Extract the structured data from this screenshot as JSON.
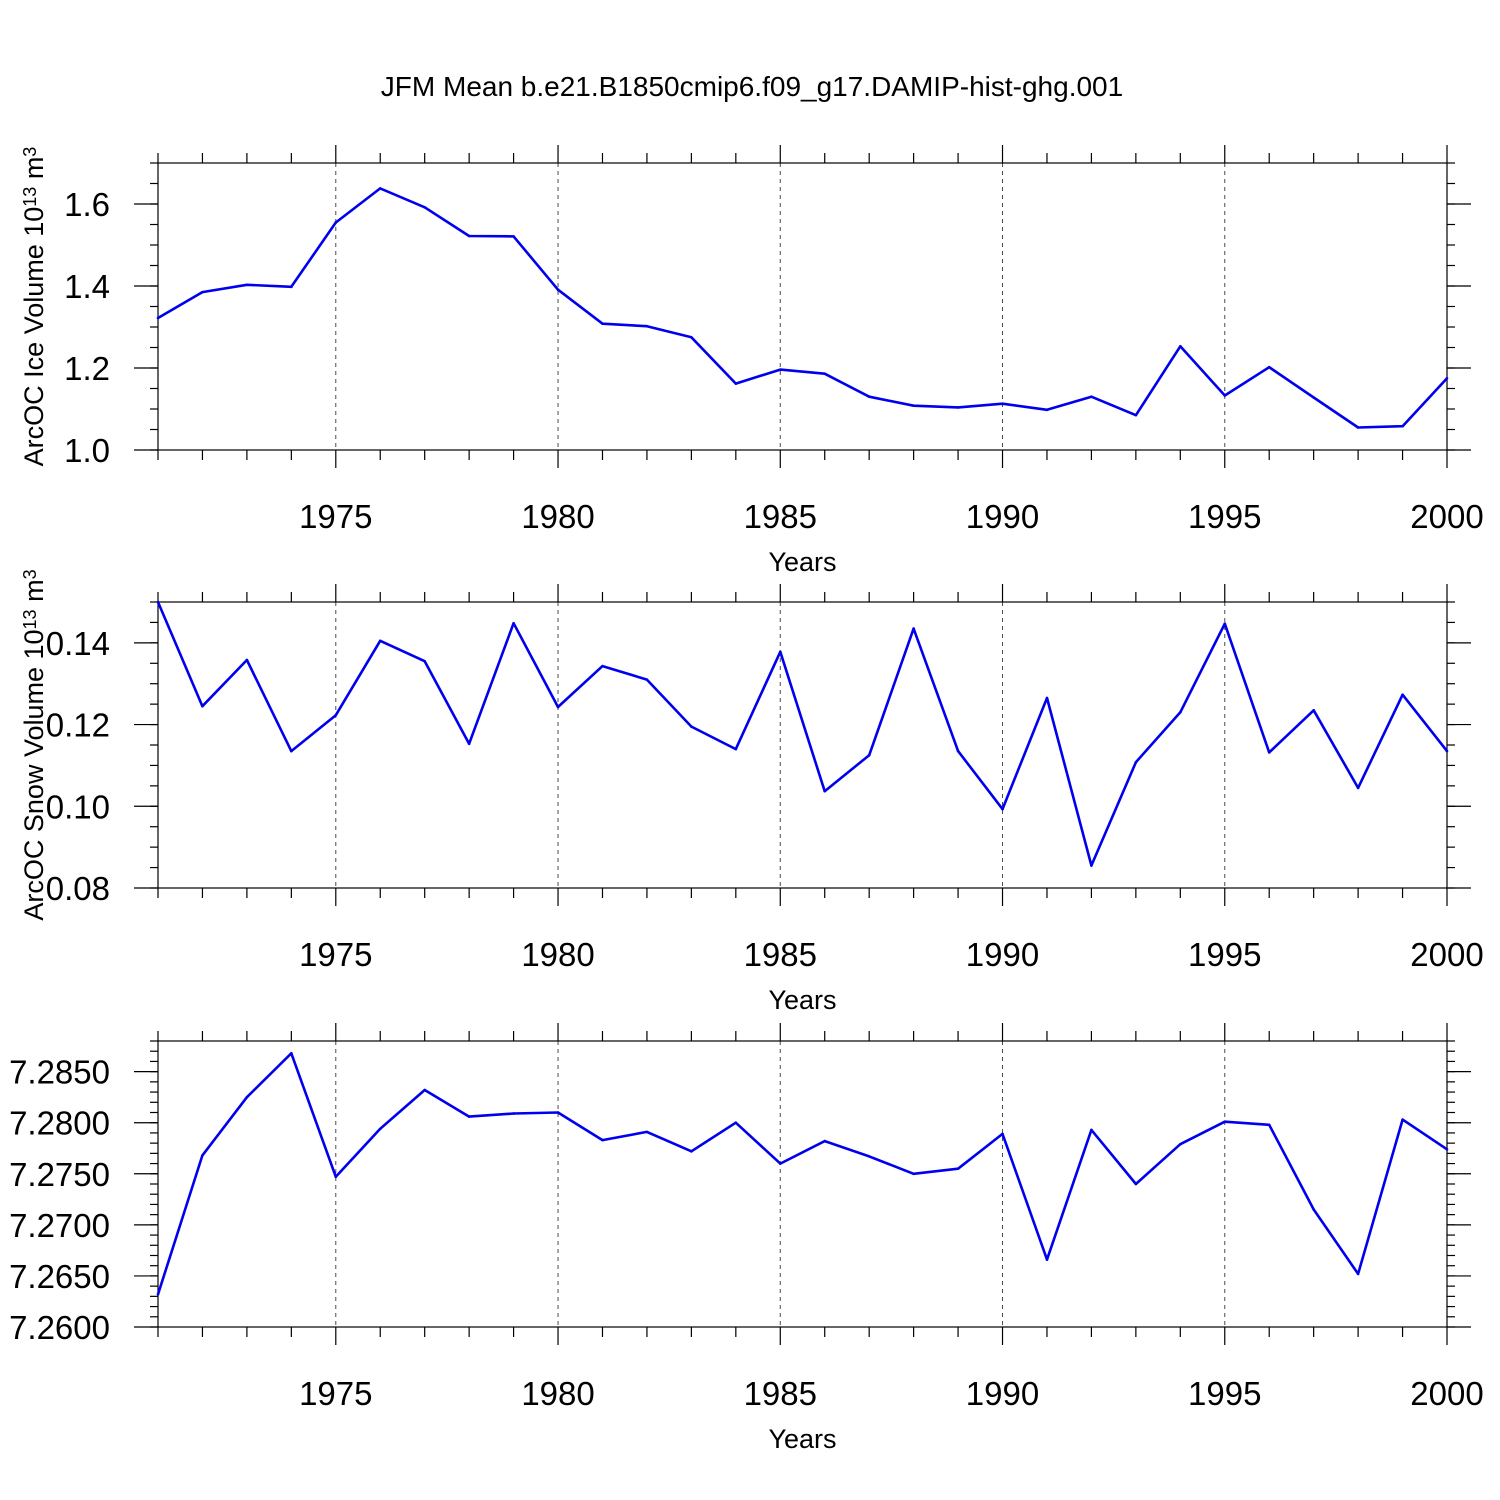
{
  "title": "JFM Mean b.e21.B1850cmip6.f09_g17.DAMIP-hist-ghg.001",
  "colors": {
    "line": "#0000ee",
    "axis": "#000000",
    "background": "#ffffff"
  },
  "chart_data": [
    {
      "type": "line",
      "xlabel": "Years",
      "ylabel": "ArcOC Ice Volume 10",
      "ylabel_exp": "13",
      "ylabel_unit": " m",
      "ylabel_unit_exp": "3",
      "xlim": [
        1971,
        2000
      ],
      "ylim": [
        1.0,
        1.7
      ],
      "xticks": [
        1975,
        1980,
        1985,
        1990,
        1995,
        2000
      ],
      "xtick_labels": [
        "1975",
        "1980",
        "1985",
        "1990",
        "1995",
        "2000"
      ],
      "yticks": [
        1.0,
        1.2,
        1.4,
        1.6
      ],
      "ytick_labels": [
        "1.0",
        "1.2",
        "1.4",
        "1.6"
      ],
      "yminor": 0.05,
      "grid": "x dashed",
      "x": [
        1971,
        1972,
        1973,
        1974,
        1975,
        1976,
        1977,
        1978,
        1979,
        1980,
        1981,
        1982,
        1983,
        1984,
        1985,
        1986,
        1987,
        1988,
        1989,
        1990,
        1991,
        1992,
        1993,
        1994,
        1995,
        1996,
        1997,
        1998,
        1999,
        2000
      ],
      "series": [
        {
          "values": [
            1.322,
            1.385,
            1.403,
            1.398,
            1.555,
            1.638,
            1.592,
            1.522,
            1.521,
            1.391,
            1.308,
            1.302,
            1.275,
            1.162,
            1.196,
            1.186,
            1.13,
            1.108,
            1.104,
            1.113,
            1.098,
            1.13,
            1.085,
            1.253,
            1.133,
            1.202,
            1.128,
            1.055,
            1.058,
            1.175
          ]
        }
      ]
    },
    {
      "type": "line",
      "xlabel": "Years",
      "ylabel": "ArcOC Snow Volume 10",
      "ylabel_exp": "13",
      "ylabel_unit": " m",
      "ylabel_unit_exp": "3",
      "xlim": [
        1971,
        2000
      ],
      "ylim": [
        0.08,
        0.15
      ],
      "xticks": [
        1975,
        1980,
        1985,
        1990,
        1995,
        2000
      ],
      "xtick_labels": [
        "1975",
        "1980",
        "1985",
        "1990",
        "1995",
        "2000"
      ],
      "yticks": [
        0.08,
        0.1,
        0.12,
        0.14
      ],
      "ytick_labels": [
        "0.08",
        "0.10",
        "0.12",
        "0.14"
      ],
      "yminor": 0.005,
      "grid": "x dashed",
      "x": [
        1971,
        1972,
        1973,
        1974,
        1975,
        1976,
        1977,
        1978,
        1979,
        1980,
        1981,
        1982,
        1983,
        1984,
        1985,
        1986,
        1987,
        1988,
        1989,
        1990,
        1991,
        1992,
        1993,
        1994,
        1995,
        1996,
        1997,
        1998,
        1999,
        2000
      ],
      "series": [
        {
          "values": [
            0.15,
            0.1245,
            0.1358,
            0.1135,
            0.1223,
            0.1405,
            0.1355,
            0.1153,
            0.1448,
            0.1243,
            0.1343,
            0.131,
            0.1195,
            0.114,
            0.1378,
            0.1037,
            0.1125,
            0.1435,
            0.1135,
            0.0993,
            0.1265,
            0.0855,
            0.1108,
            0.123,
            0.1447,
            0.1132,
            0.1235,
            0.1045,
            0.1273,
            0.1135
          ]
        }
      ]
    },
    {
      "type": "line",
      "xlabel": "Years",
      "ylabel": "",
      "xlim": [
        1971,
        2000
      ],
      "ylim": [
        7.26,
        7.288
      ],
      "xticks": [
        1975,
        1980,
        1985,
        1990,
        1995,
        2000
      ],
      "xtick_labels": [
        "1975",
        "1980",
        "1985",
        "1990",
        "1995",
        "2000"
      ],
      "yticks": [
        7.26,
        7.265,
        7.27,
        7.275,
        7.28,
        7.285
      ],
      "ytick_labels": [
        "7.2600",
        "7.2650",
        "7.2700",
        "7.2750",
        "7.2800",
        "7.2850"
      ],
      "yminor": 0.001,
      "grid": "x dashed",
      "x": [
        1971,
        1972,
        1973,
        1974,
        1975,
        1976,
        1977,
        1978,
        1979,
        1980,
        1981,
        1982,
        1983,
        1984,
        1985,
        1986,
        1987,
        1988,
        1989,
        1990,
        1991,
        1992,
        1993,
        1994,
        1995,
        1996,
        1997,
        1998,
        1999,
        2000
      ],
      "series": [
        {
          "values": [
            7.2632,
            7.2768,
            7.2825,
            7.2868,
            7.2747,
            7.2794,
            7.2832,
            7.2806,
            7.2809,
            7.281,
            7.2783,
            7.2791,
            7.2772,
            7.28,
            7.276,
            7.2782,
            7.2767,
            7.275,
            7.2755,
            7.2789,
            7.2666,
            7.2793,
            7.274,
            7.2779,
            7.2801,
            7.2798,
            7.2715,
            7.2652,
            7.2803,
            7.2774
          ]
        }
      ]
    }
  ]
}
